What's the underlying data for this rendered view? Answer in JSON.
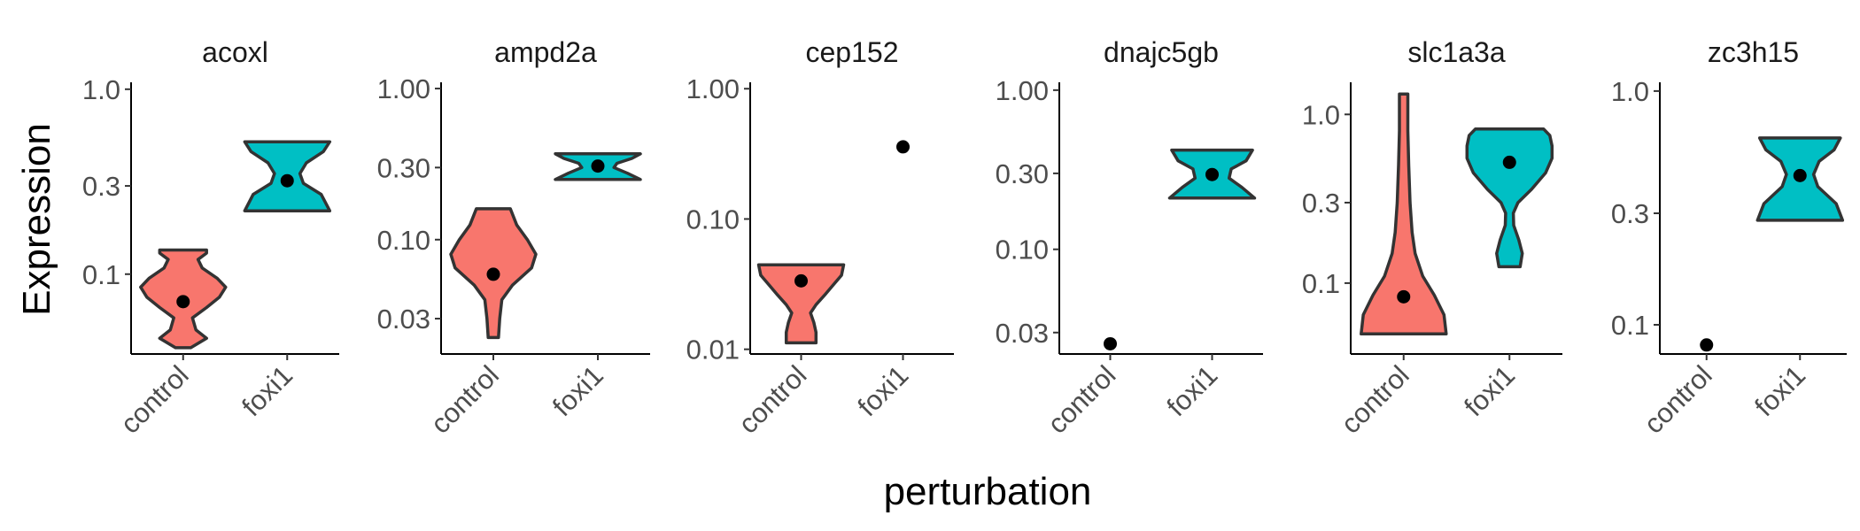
{
  "chart_data": {
    "type": "violin",
    "xlabel": "perturbation",
    "ylabel": "Expression",
    "yscale": "log10",
    "categories": [
      "control",
      "foxi1"
    ],
    "colors": {
      "control": "#F8766D",
      "foxi1": "#00BFC4"
    },
    "facets": [
      {
        "title": "acoxl",
        "ylim": [
          0.037,
          1.09
        ],
        "yticks": [
          {
            "value": 0.1,
            "label": "0.1"
          },
          {
            "value": 0.3,
            "label": "0.3"
          },
          {
            "value": 1.0,
            "label": "1.0"
          }
        ],
        "groups": [
          {
            "name": "control",
            "min": 0.04,
            "max": 0.135,
            "mean": 0.071,
            "profile": [
              [
                0.04,
                0.18
              ],
              [
                0.045,
                0.55
              ],
              [
                0.05,
                0.3
              ],
              [
                0.058,
                0.22
              ],
              [
                0.066,
                0.55
              ],
              [
                0.075,
                0.85
              ],
              [
                0.085,
                1.0
              ],
              [
                0.095,
                0.8
              ],
              [
                0.108,
                0.45
              ],
              [
                0.12,
                0.35
              ],
              [
                0.13,
                0.55
              ],
              [
                0.135,
                0.55
              ]
            ]
          },
          {
            "name": "foxi1",
            "min": 0.22,
            "max": 0.52,
            "mean": 0.32,
            "profile": [
              [
                0.22,
                1.0
              ],
              [
                0.27,
                0.8
              ],
              [
                0.31,
                0.38
              ],
              [
                0.35,
                0.3
              ],
              [
                0.4,
                0.45
              ],
              [
                0.46,
                0.85
              ],
              [
                0.52,
                1.0
              ]
            ]
          }
        ]
      },
      {
        "title": "ampd2a",
        "ylim": [
          0.0175,
          1.1
        ],
        "yticks": [
          {
            "value": 0.03,
            "label": "0.03"
          },
          {
            "value": 0.1,
            "label": "0.10"
          },
          {
            "value": 0.3,
            "label": "0.30"
          },
          {
            "value": 1.0,
            "label": "1.00"
          }
        ],
        "groups": [
          {
            "name": "control",
            "min": 0.0225,
            "max": 0.16,
            "mean": 0.059,
            "profile": [
              [
                0.0225,
                0.12
              ],
              [
                0.03,
                0.15
              ],
              [
                0.04,
                0.2
              ],
              [
                0.05,
                0.45
              ],
              [
                0.065,
                0.9
              ],
              [
                0.08,
                1.0
              ],
              [
                0.1,
                0.8
              ],
              [
                0.125,
                0.55
              ],
              [
                0.16,
                0.4
              ]
            ]
          },
          {
            "name": "foxi1",
            "min": 0.25,
            "max": 0.37,
            "mean": 0.307,
            "profile": [
              [
                0.25,
                1.0
              ],
              [
                0.275,
                0.7
              ],
              [
                0.3,
                0.38
              ],
              [
                0.32,
                0.45
              ],
              [
                0.345,
                0.8
              ],
              [
                0.37,
                1.0
              ]
            ]
          }
        ]
      },
      {
        "title": "cep152",
        "ylim": [
          0.0092,
          1.12
        ],
        "yticks": [
          {
            "value": 0.01,
            "label": "0.01"
          },
          {
            "value": 0.1,
            "label": "0.10"
          },
          {
            "value": 1.0,
            "label": "1.00"
          }
        ],
        "groups": [
          {
            "name": "control",
            "min": 0.0112,
            "max": 0.0445,
            "mean": 0.0335,
            "profile": [
              [
                0.0112,
                0.35
              ],
              [
                0.0135,
                0.35
              ],
              [
                0.016,
                0.3
              ],
              [
                0.019,
                0.22
              ],
              [
                0.022,
                0.35
              ],
              [
                0.026,
                0.55
              ],
              [
                0.031,
                0.75
              ],
              [
                0.037,
                0.95
              ],
              [
                0.0445,
                1.0
              ]
            ]
          },
          {
            "name": "foxi1",
            "min": 0.358,
            "max": 0.358,
            "mean": 0.358,
            "profile": []
          }
        ]
      },
      {
        "title": "dnajc5gb",
        "ylim": [
          0.022,
          1.12
        ],
        "yticks": [
          {
            "value": 0.03,
            "label": "0.03"
          },
          {
            "value": 0.1,
            "label": "0.10"
          },
          {
            "value": 0.3,
            "label": "0.30"
          },
          {
            "value": 1.0,
            "label": "1.00"
          }
        ],
        "groups": [
          {
            "name": "control",
            "min": 0.0255,
            "max": 0.0255,
            "mean": 0.0255,
            "profile": []
          },
          {
            "name": "foxi1",
            "min": 0.21,
            "max": 0.42,
            "mean": 0.295,
            "profile": [
              [
                0.21,
                1.0
              ],
              [
                0.245,
                0.7
              ],
              [
                0.28,
                0.4
              ],
              [
                0.32,
                0.45
              ],
              [
                0.36,
                0.8
              ],
              [
                0.42,
                0.95
              ]
            ]
          }
        ]
      },
      {
        "title": "slc1a3a",
        "ylim": [
          0.038,
          1.55
        ],
        "yticks": [
          {
            "value": 0.1,
            "label": "0.1"
          },
          {
            "value": 0.3,
            "label": "0.3"
          },
          {
            "value": 1.0,
            "label": "1.0"
          }
        ],
        "groups": [
          {
            "name": "control",
            "min": 0.05,
            "max": 1.32,
            "mean": 0.083,
            "profile": [
              [
                0.05,
                1.0
              ],
              [
                0.065,
                0.95
              ],
              [
                0.085,
                0.72
              ],
              [
                0.11,
                0.45
              ],
              [
                0.15,
                0.27
              ],
              [
                0.2,
                0.2
              ],
              [
                0.3,
                0.15
              ],
              [
                0.5,
                0.12
              ],
              [
                0.8,
                0.1
              ],
              [
                1.32,
                0.1
              ]
            ]
          },
          {
            "name": "foxi1",
            "min": 0.125,
            "max": 0.82,
            "mean": 0.52,
            "profile": [
              [
                0.125,
                0.25
              ],
              [
                0.15,
                0.3
              ],
              [
                0.18,
                0.22
              ],
              [
                0.22,
                0.1
              ],
              [
                0.26,
                0.09
              ],
              [
                0.3,
                0.2
              ],
              [
                0.36,
                0.52
              ],
              [
                0.45,
                0.85
              ],
              [
                0.55,
                1.0
              ],
              [
                0.65,
                1.0
              ],
              [
                0.75,
                0.95
              ],
              [
                0.82,
                0.8
              ]
            ]
          }
        ]
      },
      {
        "title": "zc3h15",
        "ylim": [
          0.075,
          1.09
        ],
        "yticks": [
          {
            "value": 0.1,
            "label": "0.1"
          },
          {
            "value": 0.3,
            "label": "0.3"
          },
          {
            "value": 1.0,
            "label": "1.0"
          }
        ],
        "groups": [
          {
            "name": "control",
            "min": 0.082,
            "max": 0.082,
            "mean": 0.082,
            "profile": []
          },
          {
            "name": "foxi1",
            "min": 0.28,
            "max": 0.63,
            "mean": 0.435,
            "profile": [
              [
                0.28,
                1.0
              ],
              [
                0.33,
                0.85
              ],
              [
                0.39,
                0.42
              ],
              [
                0.44,
                0.32
              ],
              [
                0.5,
                0.45
              ],
              [
                0.56,
                0.8
              ],
              [
                0.63,
                0.95
              ]
            ]
          }
        ]
      }
    ]
  }
}
